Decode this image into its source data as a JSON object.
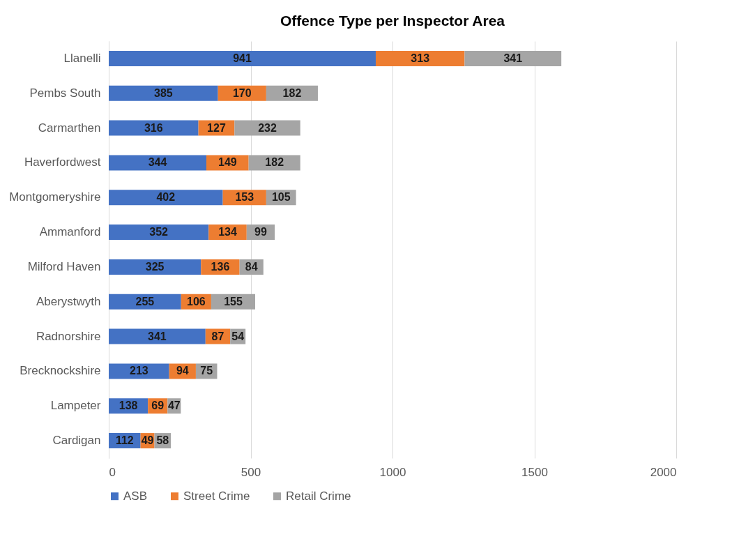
{
  "chart_data": {
    "type": "bar",
    "orientation": "horizontal",
    "stacked": true,
    "title": "Offence Type per Inspector Area",
    "categories": [
      "Llanelli",
      "Pembs South",
      "Carmarthen",
      "Haverfordwest",
      "Montgomeryshire",
      "Ammanford",
      "Milford Haven",
      "Aberystwyth",
      "Radnorshire",
      "Brecknockshire",
      "Lampeter",
      "Cardigan"
    ],
    "series": [
      {
        "name": "ASB",
        "color": "#4472c4",
        "values": [
          941,
          385,
          316,
          344,
          402,
          352,
          325,
          255,
          341,
          213,
          138,
          112
        ]
      },
      {
        "name": "Street Crime",
        "color": "#ed7d31",
        "values": [
          313,
          170,
          127,
          149,
          153,
          134,
          136,
          106,
          87,
          94,
          69,
          49
        ]
      },
      {
        "name": "Retail Crime",
        "color": "#a5a5a5",
        "values": [
          341,
          182,
          232,
          182,
          105,
          99,
          84,
          155,
          54,
          75,
          47,
          58
        ]
      }
    ],
    "xlim": [
      0,
      2000
    ],
    "xticks": [
      0,
      500,
      1000,
      1500,
      2000
    ],
    "grid": "x",
    "legend": "bottom",
    "data_labels": true
  }
}
